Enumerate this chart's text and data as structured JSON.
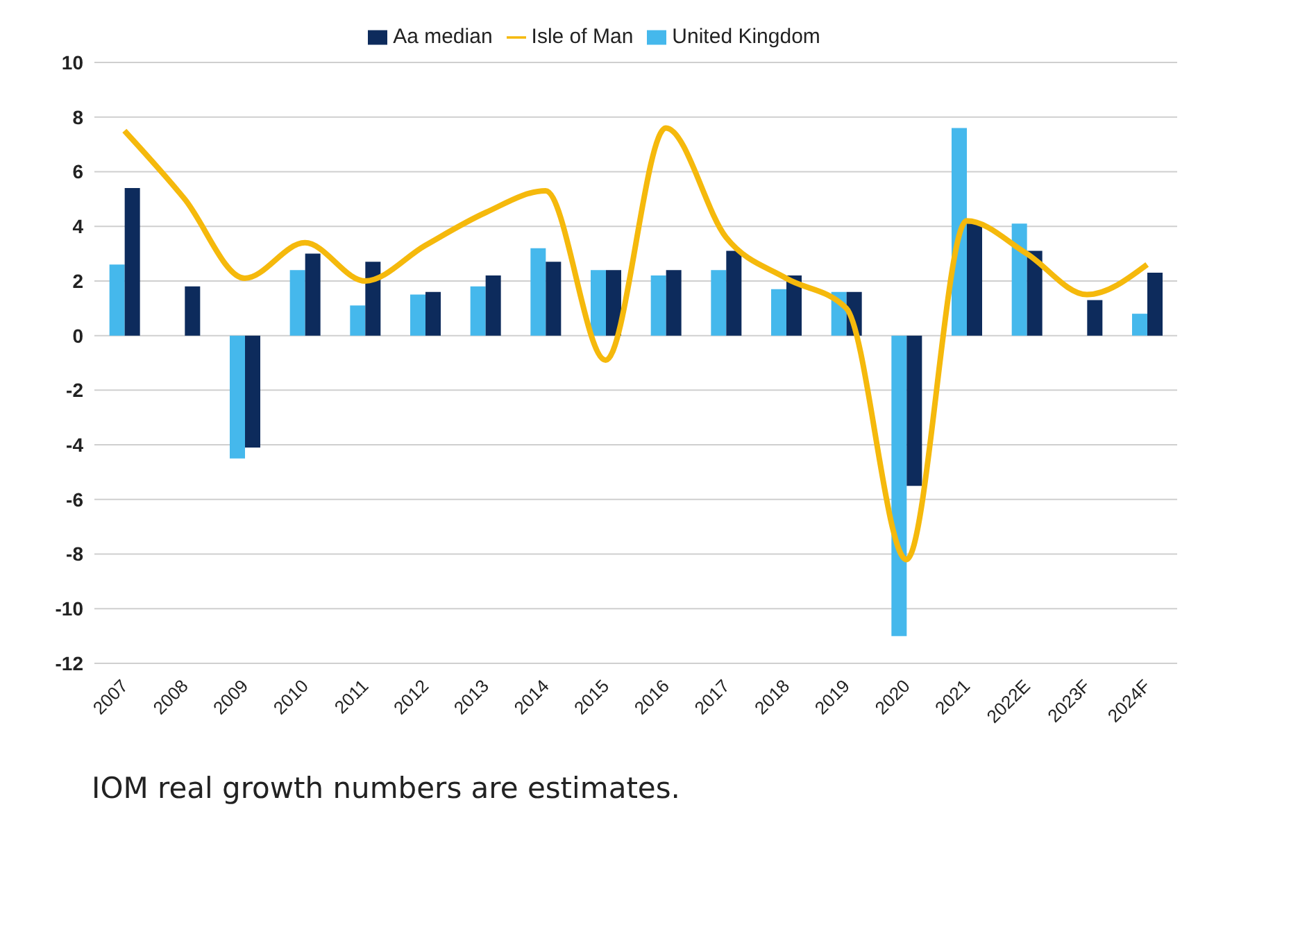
{
  "chart_data": {
    "type": "bar",
    "categories": [
      "2007",
      "2008",
      "2009",
      "2010",
      "2011",
      "2012",
      "2013",
      "2014",
      "2015",
      "2016",
      "2017",
      "2018",
      "2019",
      "2020",
      "2021",
      "2022E",
      "2023F",
      "2024F"
    ],
    "series": [
      {
        "name": "United Kingdom",
        "color": "#45b8ec",
        "values": [
          2.6,
          0,
          -4.5,
          2.4,
          1.1,
          1.5,
          1.8,
          3.2,
          2.4,
          2.2,
          2.4,
          1.7,
          1.6,
          -11,
          7.6,
          4.1,
          0,
          0.8
        ]
      },
      {
        "name": "Aa median",
        "color": "#0d2b5c",
        "values": [
          5.4,
          1.8,
          -4.1,
          3.0,
          2.7,
          1.6,
          2.2,
          2.7,
          2.4,
          2.4,
          3.1,
          2.2,
          1.6,
          -5.5,
          4.1,
          3.1,
          1.3,
          2.3
        ]
      },
      {
        "name": "Isle of Man",
        "type": "line",
        "color": "#f5b90c",
        "values": [
          7.5,
          5.0,
          2.1,
          3.4,
          2.0,
          3.3,
          4.5,
          5.3,
          -0.9,
          7.6,
          3.6,
          2.1,
          1.0,
          -8.2,
          4.2,
          3.0,
          1.5,
          2.6
        ]
      }
    ],
    "ylim": [
      -12,
      10
    ],
    "yticks": [
      -12,
      -10,
      -8,
      -6,
      -4,
      -2,
      0,
      2,
      4,
      6,
      8,
      10
    ],
    "grid": "y",
    "legend": "top",
    "annotations": [
      "IOM real growth numbers are estimates."
    ]
  }
}
